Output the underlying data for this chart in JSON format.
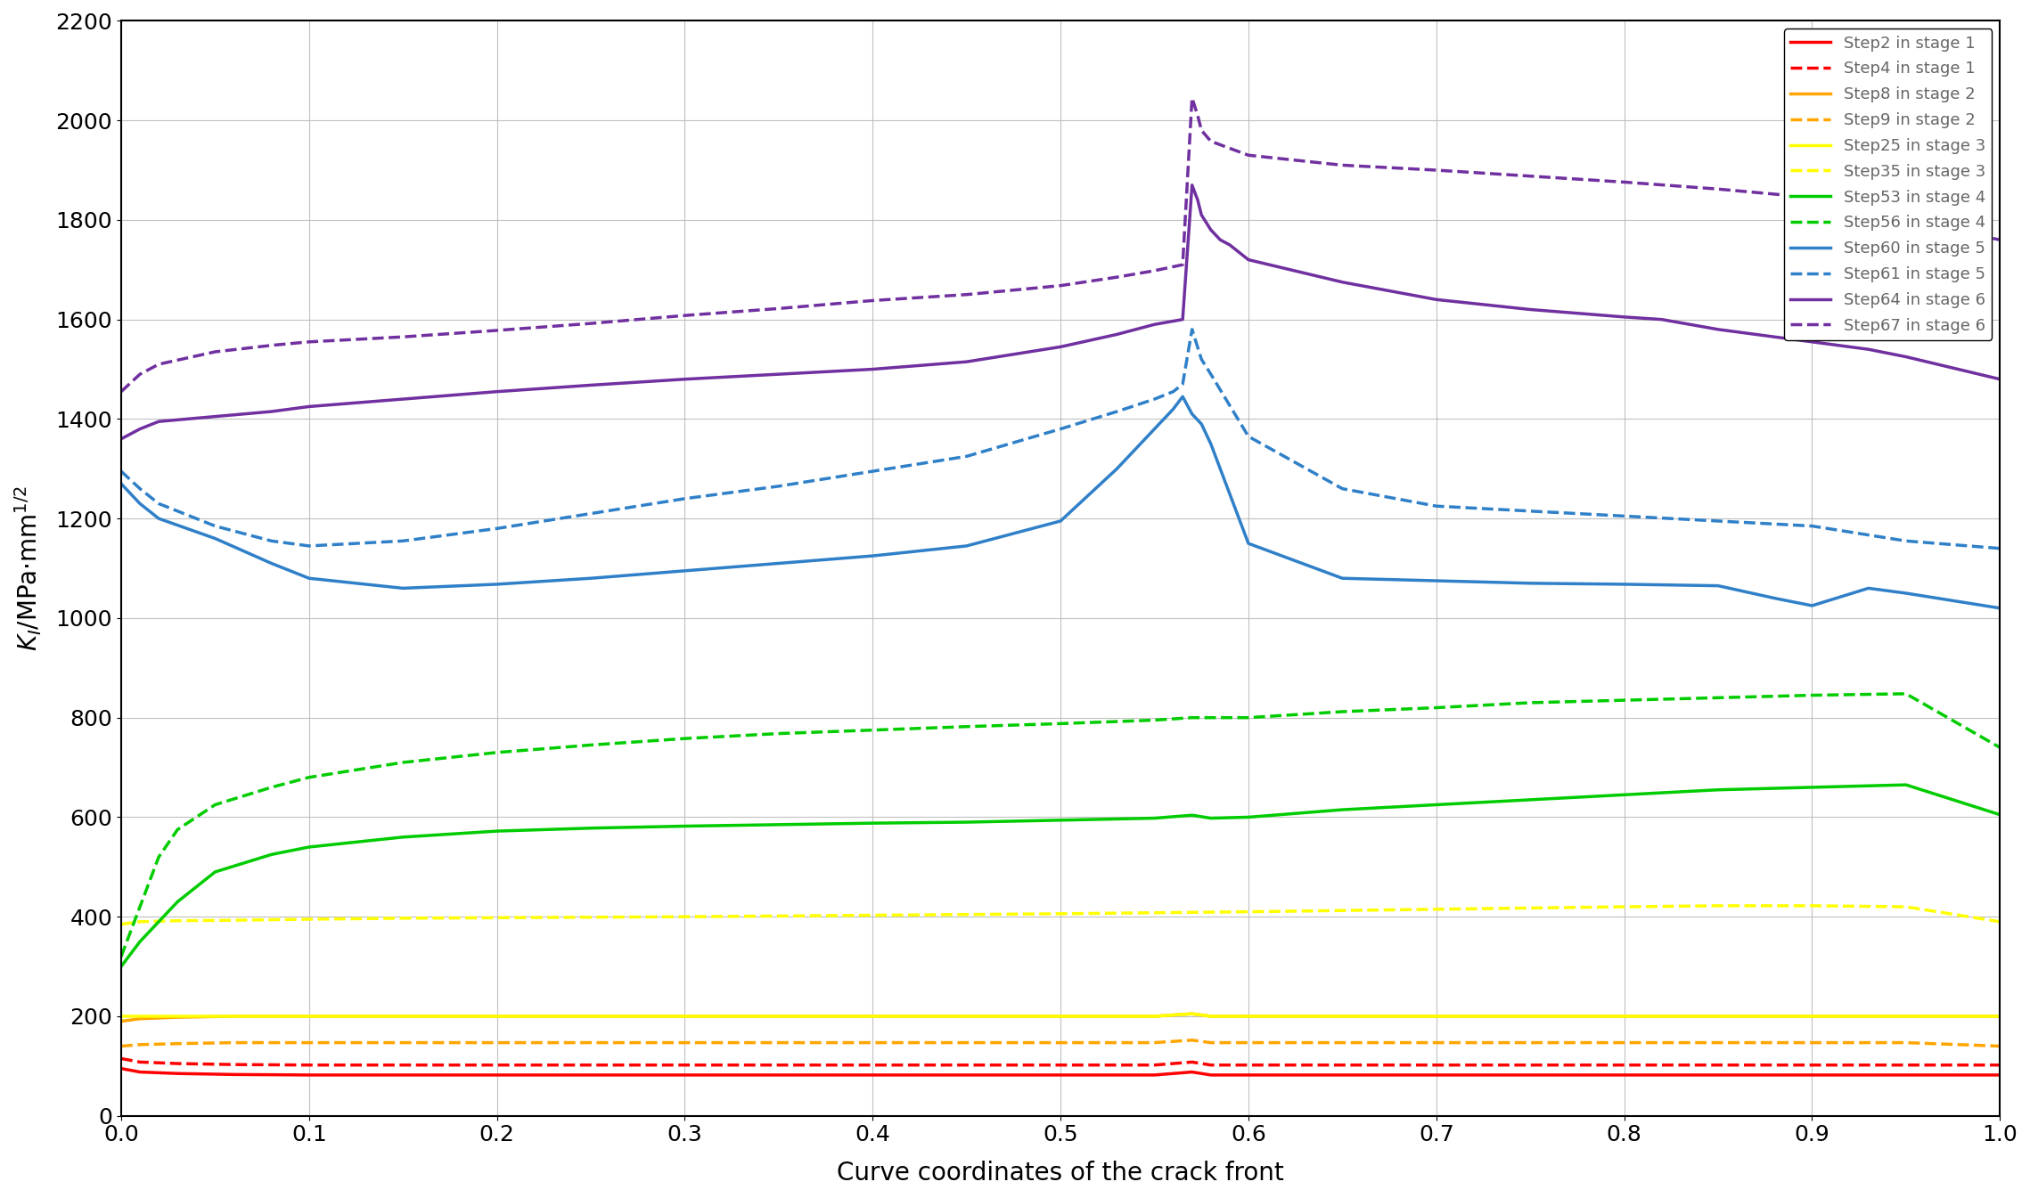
{
  "xlabel": "Curve coordinates of the crack front",
  "xlim": [
    0,
    1.0
  ],
  "ylim": [
    0,
    2200
  ],
  "yticks": [
    0,
    200,
    400,
    600,
    800,
    1000,
    1200,
    1400,
    1600,
    1800,
    2000,
    2200
  ],
  "xticks": [
    0,
    0.1,
    0.2,
    0.3,
    0.4,
    0.5,
    0.6,
    0.7,
    0.8,
    0.9,
    1.0
  ],
  "series": [
    {
      "label": "Step2 in stage 1",
      "color": "#FF0000",
      "linestyle": "solid",
      "linewidth": 2.5,
      "x": [
        0.0,
        0.01,
        0.03,
        0.06,
        0.1,
        0.15,
        0.2,
        0.3,
        0.4,
        0.5,
        0.55,
        0.57,
        0.58,
        0.6,
        0.7,
        0.8,
        0.9,
        0.95,
        1.0
      ],
      "y": [
        95,
        88,
        85,
        83,
        82,
        82,
        82,
        82,
        82,
        82,
        82,
        88,
        82,
        82,
        82,
        82,
        82,
        82,
        82
      ]
    },
    {
      "label": "Step4 in stage 1",
      "color": "#FF0000",
      "linestyle": "dashed",
      "linewidth": 2.5,
      "x": [
        0.0,
        0.01,
        0.03,
        0.06,
        0.1,
        0.15,
        0.2,
        0.3,
        0.4,
        0.5,
        0.55,
        0.57,
        0.58,
        0.6,
        0.7,
        0.8,
        0.9,
        0.95,
        1.0
      ],
      "y": [
        115,
        108,
        105,
        103,
        102,
        102,
        102,
        102,
        102,
        102,
        102,
        108,
        102,
        102,
        102,
        102,
        102,
        102,
        102
      ]
    },
    {
      "label": "Step8 in stage 2",
      "color": "#FFA500",
      "linestyle": "solid",
      "linewidth": 2.5,
      "x": [
        0.0,
        0.01,
        0.03,
        0.06,
        0.1,
        0.15,
        0.2,
        0.3,
        0.4,
        0.5,
        0.55,
        0.57,
        0.58,
        0.6,
        0.7,
        0.8,
        0.9,
        0.95,
        1.0
      ],
      "y": [
        190,
        195,
        198,
        200,
        200,
        200,
        200,
        200,
        200,
        200,
        200,
        205,
        200,
        200,
        200,
        200,
        200,
        200,
        200
      ]
    },
    {
      "label": "Step9 in stage 2",
      "color": "#FFA500",
      "linestyle": "dashed",
      "linewidth": 2.5,
      "x": [
        0.0,
        0.01,
        0.03,
        0.06,
        0.1,
        0.15,
        0.2,
        0.3,
        0.4,
        0.5,
        0.55,
        0.57,
        0.58,
        0.6,
        0.7,
        0.8,
        0.9,
        0.95,
        1.0
      ],
      "y": [
        140,
        143,
        145,
        147,
        147,
        147,
        147,
        147,
        147,
        147,
        147,
        152,
        147,
        147,
        147,
        147,
        147,
        147,
        140
      ]
    },
    {
      "label": "Step25 in stage 3",
      "color": "#FFFF00",
      "linestyle": "solid",
      "linewidth": 2.5,
      "x": [
        0.0,
        0.01,
        0.03,
        0.06,
        0.1,
        0.15,
        0.2,
        0.3,
        0.4,
        0.5,
        0.55,
        0.57,
        0.58,
        0.6,
        0.7,
        0.8,
        0.9,
        0.95,
        1.0
      ],
      "y": [
        200,
        200,
        200,
        200,
        200,
        200,
        200,
        200,
        200,
        200,
        200,
        205,
        200,
        200,
        200,
        200,
        200,
        200,
        200
      ]
    },
    {
      "label": "Step35 in stage 3",
      "color": "#FFFF00",
      "linestyle": "dashed",
      "linewidth": 2.5,
      "x": [
        0.0,
        0.01,
        0.03,
        0.06,
        0.1,
        0.15,
        0.2,
        0.3,
        0.4,
        0.5,
        0.55,
        0.6,
        0.7,
        0.8,
        0.85,
        0.9,
        0.95,
        1.0
      ],
      "y": [
        385,
        390,
        392,
        393,
        395,
        397,
        398,
        400,
        403,
        406,
        408,
        410,
        415,
        420,
        422,
        422,
        420,
        390
      ]
    },
    {
      "label": "Step53 in stage 4",
      "color": "#00CC00",
      "linestyle": "solid",
      "linewidth": 2.5,
      "x": [
        0.0,
        0.01,
        0.02,
        0.03,
        0.05,
        0.08,
        0.1,
        0.15,
        0.2,
        0.25,
        0.3,
        0.35,
        0.4,
        0.45,
        0.5,
        0.55,
        0.57,
        0.58,
        0.6,
        0.65,
        0.7,
        0.75,
        0.8,
        0.85,
        0.9,
        0.95,
        1.0
      ],
      "y": [
        300,
        350,
        390,
        430,
        490,
        525,
        540,
        560,
        572,
        578,
        582,
        585,
        588,
        590,
        594,
        598,
        604,
        598,
        600,
        615,
        625,
        635,
        645,
        655,
        660,
        665,
        605
      ]
    },
    {
      "label": "Step56 in stage 4",
      "color": "#00CC00",
      "linestyle": "dashed",
      "linewidth": 2.5,
      "x": [
        0.0,
        0.01,
        0.02,
        0.03,
        0.05,
        0.08,
        0.1,
        0.15,
        0.2,
        0.25,
        0.3,
        0.35,
        0.4,
        0.45,
        0.5,
        0.55,
        0.57,
        0.6,
        0.65,
        0.7,
        0.75,
        0.8,
        0.85,
        0.9,
        0.95,
        1.0
      ],
      "y": [
        320,
        420,
        520,
        575,
        625,
        660,
        680,
        710,
        730,
        745,
        758,
        768,
        775,
        782,
        788,
        795,
        800,
        800,
        812,
        820,
        830,
        835,
        840,
        845,
        848,
        740
      ]
    },
    {
      "label": "Step60 in stage 5",
      "color": "#2F80C8",
      "linestyle": "solid",
      "linewidth": 2.5,
      "x": [
        0.0,
        0.01,
        0.02,
        0.05,
        0.08,
        0.1,
        0.15,
        0.2,
        0.25,
        0.3,
        0.35,
        0.4,
        0.45,
        0.5,
        0.53,
        0.55,
        0.56,
        0.565,
        0.57,
        0.575,
        0.58,
        0.59,
        0.6,
        0.65,
        0.7,
        0.75,
        0.8,
        0.85,
        0.88,
        0.9,
        0.93,
        0.95,
        1.0
      ],
      "y": [
        1270,
        1230,
        1200,
        1160,
        1110,
        1080,
        1060,
        1068,
        1080,
        1095,
        1110,
        1125,
        1145,
        1195,
        1300,
        1380,
        1420,
        1445,
        1410,
        1390,
        1350,
        1250,
        1150,
        1080,
        1075,
        1070,
        1068,
        1065,
        1040,
        1025,
        1060,
        1050,
        1020
      ]
    },
    {
      "label": "Step61 in stage 5",
      "color": "#2F80C8",
      "linestyle": "dashed",
      "linewidth": 2.5,
      "x": [
        0.0,
        0.01,
        0.02,
        0.05,
        0.08,
        0.1,
        0.15,
        0.2,
        0.25,
        0.3,
        0.35,
        0.4,
        0.45,
        0.5,
        0.53,
        0.55,
        0.56,
        0.565,
        0.57,
        0.575,
        0.58,
        0.6,
        0.65,
        0.7,
        0.75,
        0.8,
        0.85,
        0.9,
        0.95,
        1.0
      ],
      "y": [
        1295,
        1260,
        1230,
        1185,
        1155,
        1145,
        1155,
        1180,
        1210,
        1240,
        1265,
        1295,
        1325,
        1380,
        1415,
        1440,
        1455,
        1470,
        1580,
        1520,
        1490,
        1365,
        1260,
        1225,
        1215,
        1205,
        1195,
        1185,
        1155,
        1140
      ]
    },
    {
      "label": "Step64 in stage 6",
      "color": "#7030A0",
      "linestyle": "solid",
      "linewidth": 2.5,
      "x": [
        0.0,
        0.01,
        0.02,
        0.05,
        0.08,
        0.1,
        0.15,
        0.2,
        0.25,
        0.3,
        0.35,
        0.4,
        0.45,
        0.5,
        0.53,
        0.55,
        0.565,
        0.57,
        0.573,
        0.575,
        0.58,
        0.585,
        0.59,
        0.6,
        0.65,
        0.7,
        0.75,
        0.8,
        0.82,
        0.85,
        0.88,
        0.9,
        0.93,
        0.95,
        1.0
      ],
      "y": [
        1360,
        1380,
        1395,
        1405,
        1415,
        1425,
        1440,
        1455,
        1468,
        1480,
        1490,
        1500,
        1515,
        1545,
        1570,
        1590,
        1600,
        1870,
        1840,
        1810,
        1780,
        1760,
        1750,
        1720,
        1675,
        1640,
        1620,
        1605,
        1600,
        1580,
        1565,
        1555,
        1540,
        1525,
        1480
      ]
    },
    {
      "label": "Step67 in stage 6",
      "color": "#7030A0",
      "linestyle": "dashed",
      "linewidth": 2.5,
      "x": [
        0.0,
        0.01,
        0.02,
        0.05,
        0.08,
        0.1,
        0.15,
        0.2,
        0.25,
        0.3,
        0.35,
        0.4,
        0.45,
        0.5,
        0.53,
        0.55,
        0.565,
        0.57,
        0.573,
        0.575,
        0.58,
        0.6,
        0.65,
        0.7,
        0.75,
        0.8,
        0.85,
        0.9,
        0.95,
        1.0
      ],
      "y": [
        1455,
        1490,
        1510,
        1535,
        1548,
        1555,
        1565,
        1578,
        1592,
        1608,
        1622,
        1638,
        1650,
        1668,
        1685,
        1698,
        1710,
        2045,
        2010,
        1980,
        1958,
        1930,
        1910,
        1900,
        1888,
        1876,
        1862,
        1845,
        1800,
        1760
      ]
    }
  ],
  "background_color": "#FFFFFF",
  "grid_color": "#BBBBBB",
  "legend_fontsize": 13,
  "axis_fontsize": 20,
  "tick_fontsize": 18,
  "legend_text_color": "#666666"
}
